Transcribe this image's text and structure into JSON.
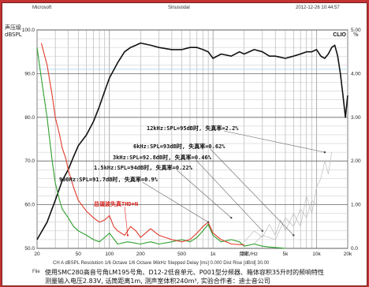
{
  "header": {
    "left": "Microsoft",
    "center": "Sinusoidal",
    "right": "2012-12-26 10:44:57",
    "logo": "CLIO"
  },
  "axes": {
    "y_left_unit_cn": "声压级",
    "y_left_unit": "dBSPL",
    "y_right_unit": "%",
    "x_unit": "频率/Hz"
  },
  "footer": {
    "settings": "CH A    dBSPL   Resolution 1/6 Octave   1/6 Octave   96kHz   Stepped   Delay [ms] 0.000   Dist Rise [dB/d] 30.00",
    "file_label": "File",
    "caption1": "使用SMC280高音号角LM195号角、D12-2低音单元、P001型分频器、箱体容积35升时的频响特性",
    "caption2": "测量输入电压2.83V, 话筒距离1m, 测声室体积240m³, 实验合作者：迪士音公司"
  },
  "chart_data": {
    "type": "line",
    "title": "",
    "xlabel": "频率/Hz",
    "ylabel": "dBSPL",
    "xscale": "log",
    "xlim": [
      20,
      20000
    ],
    "ylim": [
      50,
      100
    ],
    "y2lim": [
      0,
      5
    ],
    "grid": true,
    "x_ticks": [
      20,
      50,
      100,
      200,
      500,
      "1k",
      "2k",
      "5k",
      "10k",
      "20k"
    ],
    "y_ticks": [
      50.0,
      60.0,
      70.0,
      80.0,
      90.0,
      100.0
    ],
    "y2_ticks": [
      0.0,
      1.0,
      2.0,
      3.0,
      4.0,
      5.0
    ],
    "series": [
      {
        "color": "#111111",
        "axis": "left",
        "x": [
          20,
          25,
          30,
          35,
          40,
          45,
          50,
          60,
          70,
          80,
          90,
          100,
          120,
          140,
          160,
          180,
          200,
          250,
          300,
          400,
          500,
          600,
          700,
          800,
          900,
          1000,
          1200,
          1500,
          1800,
          2000,
          2500,
          3000,
          3500,
          4000,
          5000,
          6000,
          7000,
          8000,
          9000,
          10000,
          11000,
          12000,
          13000,
          14000,
          15000,
          16000,
          17000,
          18000,
          19000,
          20000
        ],
        "y": [
          52.0,
          56.0,
          61.0,
          65.5,
          68.0,
          71.0,
          73.5,
          76.0,
          79.0,
          82.5,
          86.0,
          89.0,
          92.5,
          95.0,
          96.0,
          96.5,
          97.0,
          96.5,
          96.0,
          95.5,
          95.5,
          96.0,
          96.0,
          95.5,
          95.0,
          93.5,
          94.5,
          94.0,
          95.0,
          94.5,
          95.5,
          95.0,
          94.0,
          94.0,
          93.5,
          94.0,
          94.5,
          95.0,
          95.0,
          95.5,
          94.0,
          93.5,
          94.5,
          96.0,
          96.5,
          94.0,
          90.0,
          85.0,
          80.0,
          85.0
        ]
      },
      {
        "color": "#2ca02c",
        "axis": "left",
        "x": [
          20,
          22,
          25,
          28,
          30,
          33,
          35,
          40,
          45,
          50,
          60,
          70,
          80,
          90,
          100,
          120,
          150,
          200,
          250,
          300,
          400,
          500,
          600,
          700,
          800,
          900,
          1000,
          1200,
          1500,
          1800,
          2000,
          2500,
          3000,
          3500,
          4000,
          4500,
          5000
        ],
        "y": [
          96.0,
          89.0,
          80.0,
          70.0,
          65.0,
          61.0,
          59.0,
          57.0,
          55.0,
          54.0,
          53.0,
          52.0,
          51.5,
          52.5,
          53.5,
          51.0,
          51.5,
          51.0,
          51.5,
          51.0,
          51.5,
          52.0,
          51.5,
          52.5,
          54.0,
          55.5,
          53.0,
          51.5,
          52.0,
          51.5,
          50.5,
          51.0,
          50.5,
          50.3,
          50.2,
          50.1,
          50.0
        ]
      },
      {
        "color": "#e23a2a",
        "axis": "left",
        "x": [
          22,
          25,
          28,
          30,
          33,
          35,
          38,
          40,
          45,
          50,
          60,
          70,
          80,
          90,
          100,
          110,
          120,
          140,
          160,
          180,
          200,
          250,
          300,
          400,
          500,
          600,
          700,
          800,
          900,
          1000,
          1200,
          1500,
          2000
        ],
        "y": [
          97.0,
          92.0,
          85.0,
          80.0,
          76.0,
          73.0,
          70.5,
          68.0,
          64.0,
          61.0,
          58.5,
          57.0,
          56.0,
          56.5,
          57.5,
          55.0,
          54.0,
          53.0,
          55.0,
          54.0,
          52.5,
          54.5,
          53.0,
          52.0,
          51.5,
          52.0,
          53.5,
          55.0,
          56.0,
          53.5,
          52.0,
          51.0,
          50.8
        ]
      }
    ],
    "annotations": [
      {
        "text": "12kHz:SPL=95dB时, 失真率=2.2%",
        "x": 12000,
        "y": 72.0
      },
      {
        "text": "6kHz:SPL=93dB时, 失真率=0.62%",
        "x": 6000,
        "y": 53.0
      },
      {
        "text": "3kHz:SPL=92.8dB时, 失真率=0.46%",
        "x": 3000,
        "y": 54.0
      },
      {
        "text": "1.5kHz:SPL=94dB时, 失真率=0.22%",
        "x": 1500,
        "y": 57.0
      },
      {
        "text": "900Hz:SPL=91.7dB时, 失真率=0.9%",
        "x": 900,
        "y": 56.0
      },
      {
        "text": "总谐波失真THD+N",
        "x": 150,
        "y": 53.0
      }
    ]
  }
}
